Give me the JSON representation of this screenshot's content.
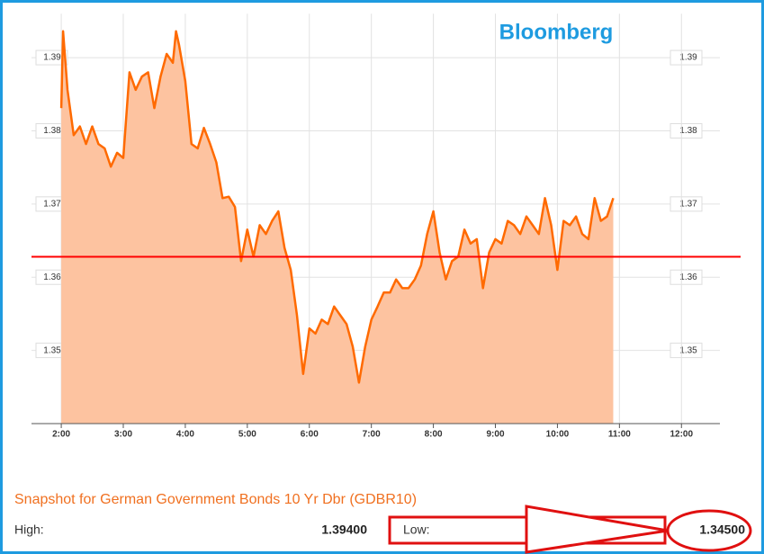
{
  "chart_data": {
    "type": "area",
    "annotation": "Bloomberg",
    "x": [
      2.0,
      2.03,
      2.1,
      2.2,
      2.3,
      2.4,
      2.5,
      2.6,
      2.7,
      2.8,
      2.9,
      3.0,
      3.1,
      3.2,
      3.3,
      3.4,
      3.5,
      3.6,
      3.7,
      3.8,
      3.85,
      3.9,
      4.0,
      4.1,
      4.2,
      4.3,
      4.4,
      4.5,
      4.6,
      4.7,
      4.8,
      4.9,
      5.0,
      5.1,
      5.2,
      5.3,
      5.4,
      5.5,
      5.6,
      5.7,
      5.8,
      5.9,
      6.0,
      6.1,
      6.2,
      6.3,
      6.4,
      6.5,
      6.6,
      6.7,
      6.8,
      6.9,
      7.0,
      7.1,
      7.2,
      7.3,
      7.4,
      7.5,
      7.6,
      7.7,
      7.8,
      7.9,
      8.0,
      8.1,
      8.2,
      8.3,
      8.4,
      8.5,
      8.6,
      8.7,
      8.8,
      8.9,
      9.0,
      9.1,
      9.2,
      9.3,
      9.4,
      9.5,
      9.6,
      9.7,
      9.8,
      9.9,
      10.0,
      10.1,
      10.2,
      10.3,
      10.4,
      10.5,
      10.6,
      10.7,
      10.8,
      10.9
    ],
    "series": [
      {
        "color": "#ff6a00",
        "fill": "#fdc3a0",
        "values": [
          1.3831,
          1.3936,
          1.3856,
          1.3794,
          1.3806,
          1.3782,
          1.3806,
          1.3782,
          1.3776,
          1.3751,
          1.377,
          1.3763,
          1.388,
          1.3856,
          1.3874,
          1.388,
          1.3831,
          1.3874,
          1.3905,
          1.3893,
          1.3936,
          1.3917,
          1.3868,
          1.3782,
          1.3776,
          1.3804,
          1.3782,
          1.3757,
          1.3708,
          1.371,
          1.3696,
          1.3622,
          1.3665,
          1.3628,
          1.3671,
          1.3659,
          1.3677,
          1.369,
          1.364,
          1.361,
          1.3548,
          1.3468,
          1.353,
          1.3523,
          1.3542,
          1.3536,
          1.356,
          1.3548,
          1.3536,
          1.3505,
          1.3456,
          1.3505,
          1.3542,
          1.356,
          1.3579,
          1.3579,
          1.3597,
          1.3585,
          1.3585,
          1.3597,
          1.3616,
          1.3659,
          1.369,
          1.3634,
          1.3597,
          1.3622,
          1.3628,
          1.3665,
          1.3646,
          1.3652,
          1.3585,
          1.3634,
          1.3652,
          1.3646,
          1.3677,
          1.3671,
          1.3659,
          1.3683,
          1.3671,
          1.3659,
          1.3708,
          1.3671,
          1.361,
          1.3677,
          1.3671,
          1.3683,
          1.3659,
          1.3652,
          1.3708,
          1.3677,
          1.3683,
          1.3708
        ]
      }
    ],
    "reference_line": 1.3628,
    "reference_color": "#ff0000",
    "xlim": [
      1.52,
      12.62
    ],
    "xticks": [
      {
        "value": 2,
        "label": "2:00"
      },
      {
        "value": 3,
        "label": "3:00"
      },
      {
        "value": 4,
        "label": "4:00"
      },
      {
        "value": 5,
        "label": "5:00"
      },
      {
        "value": 6,
        "label": "6:00"
      },
      {
        "value": 7,
        "label": "7:00"
      },
      {
        "value": 8,
        "label": "8:00"
      },
      {
        "value": 9,
        "label": "9:00"
      },
      {
        "value": 10,
        "label": "10:00"
      },
      {
        "value": 11,
        "label": "11:00"
      },
      {
        "value": 12,
        "label": "12:00"
      }
    ],
    "ylim": [
      1.34,
      1.396
    ],
    "yticks": [
      1.35,
      1.36,
      1.37,
      1.38,
      1.39
    ],
    "grid": true
  },
  "snapshot": {
    "title": "Snapshot for German Government Bonds 10 Yr Dbr (GDBR10)",
    "high_label": "High:",
    "high": "1.39400",
    "low_label": "Low:",
    "low": "1.34500"
  }
}
